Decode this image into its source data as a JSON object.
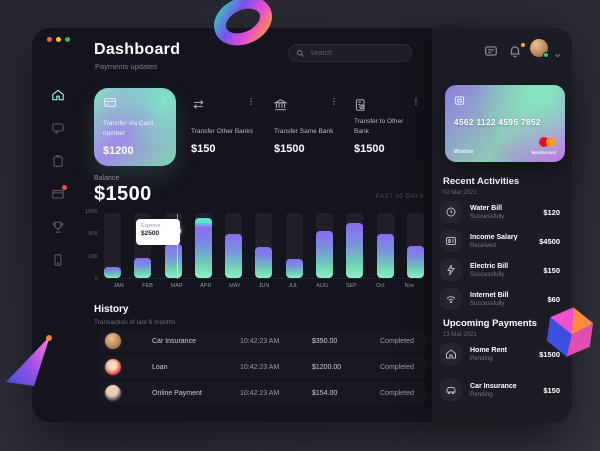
{
  "colors": {
    "accent_teal": "#7fe7c3",
    "accent_purple": "#8b6cf1",
    "notification_red": "#ff4757",
    "bell_badge_orange": "#ff9f43",
    "online_green": "#2ecc71",
    "mastercard_red": "#eb001b",
    "mastercard_orange": "#f79e1b",
    "window_bg": "#14141c",
    "right_panel_bg": "#1c1c25"
  },
  "header": {
    "title": "Dashboard",
    "subtitle": "Payments updates",
    "search_placeholder": "Search",
    "menu_dots": "⋮"
  },
  "transfers": [
    {
      "label": "Transfer via Card number",
      "amount": "$1200"
    },
    {
      "label": "Transfer Other Banks",
      "amount": "$150"
    },
    {
      "label": "Transfer Same Bank",
      "amount": "$1500"
    },
    {
      "label": "Transfer to Other Bank",
      "amount": "$1500"
    }
  ],
  "balance": {
    "label": "Balance",
    "amount": "$1500",
    "period": "PAST 30 DAYS"
  },
  "chart_data": {
    "type": "bar",
    "title": "Balance — past 30 days expenses",
    "categories": [
      "JAN",
      "FEB",
      "MAR",
      "APR",
      "MAY",
      "JUN",
      "JUL",
      "AUG",
      "SEP",
      "Oct",
      "Nov"
    ],
    "values_pct": [
      17,
      31,
      52,
      93,
      68,
      48,
      30,
      72,
      85,
      68,
      50
    ],
    "axis_ticks": [
      "100K",
      "50K",
      "10K",
      "0"
    ],
    "ylim": [
      0,
      100
    ],
    "grid": false,
    "legend": "none",
    "cap_index": 3,
    "tooltip": {
      "label": "Expense",
      "value": "$2500",
      "category": "MAR"
    },
    "bar_gradient": [
      "#8b6cf1",
      "#93f0ca"
    ]
  },
  "history": {
    "title": "History",
    "subtitle": "Transaction of last 6 months",
    "rows": [
      {
        "name": "Car Insurance",
        "time": "10:42:23 AM",
        "amount": "$350.00",
        "status": "Completed"
      },
      {
        "name": "Loan",
        "time": "10:42:23 AM",
        "amount": "$1200.00",
        "status": "Completed"
      },
      {
        "name": "Online Payment",
        "time": "10:42:23 AM",
        "amount": "$154.00",
        "status": "Completed"
      }
    ]
  },
  "credit_card": {
    "number": "4562 1122 4595 7852",
    "holder": "Wisdom",
    "brand": "Mastercard"
  },
  "recent_activities": {
    "title": "Recent Activities",
    "date": "02 Mar 2021",
    "items": [
      {
        "name": "Water Bill",
        "status": "Successfully",
        "amount": "$120"
      },
      {
        "name": "Income Salary",
        "status": "Received",
        "amount": "$4500"
      },
      {
        "name": "Electric Bill",
        "status": "Successfully",
        "amount": "$150"
      },
      {
        "name": "Internet Bill",
        "status": "Successfully",
        "amount": "$60"
      }
    ]
  },
  "upcoming_payments": {
    "title": "Upcoming Payments",
    "date": "13 Mar 2021",
    "items": [
      {
        "name": "Home Rent",
        "status": "Pending",
        "amount": "$1500"
      },
      {
        "name": "Car Insurance",
        "status": "Pending",
        "amount": "$150"
      }
    ]
  }
}
